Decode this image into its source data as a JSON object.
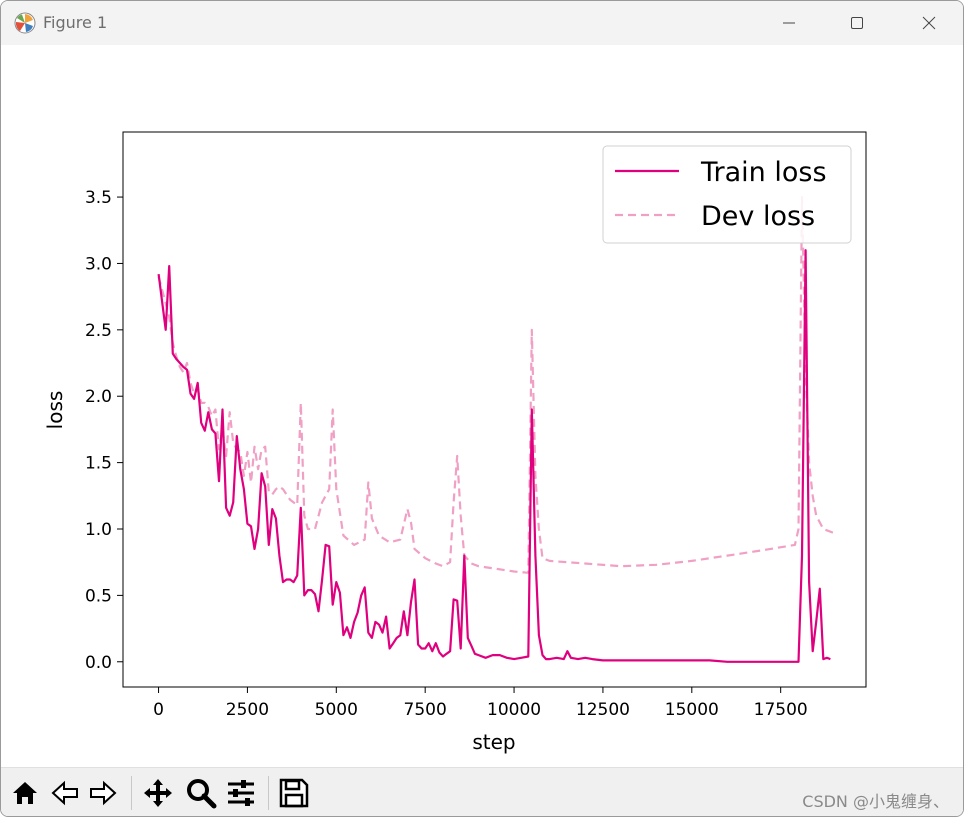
{
  "window": {
    "title": "Figure 1",
    "icon": "matplotlib-icon"
  },
  "toolbar": {
    "buttons": [
      "home-icon",
      "back-icon",
      "forward-icon",
      "pan-icon",
      "zoom-icon",
      "configure-subplots-icon",
      "save-icon"
    ],
    "watermark": "CSDN @小鬼缠身、"
  },
  "colors": {
    "train": "#e0007f",
    "dev": "#f0a0c4"
  },
  "chart_data": {
    "type": "line",
    "xlabel": "step",
    "ylabel": "loss",
    "xlim": [
      -1000,
      19900
    ],
    "ylim": [
      -0.19,
      3.99
    ],
    "xticks": [
      0,
      2500,
      5000,
      7500,
      10000,
      12500,
      15000,
      17500
    ],
    "yticks": [
      0.0,
      0.5,
      1.0,
      1.5,
      2.0,
      2.5,
      3.0,
      3.5
    ],
    "legend": {
      "position": "top-right",
      "entries": [
        "Train loss",
        "Dev loss"
      ]
    },
    "grid": false,
    "series": [
      {
        "name": "Train loss",
        "style": "solid",
        "x": [
          0,
          200,
          300,
          400,
          500,
          600,
          700,
          800,
          900,
          1000,
          1100,
          1200,
          1300,
          1400,
          1500,
          1600,
          1700,
          1800,
          1900,
          2000,
          2100,
          2200,
          2300,
          2400,
          2500,
          2600,
          2700,
          2800,
          2900,
          3000,
          3100,
          3200,
          3300,
          3400,
          3500,
          3600,
          3700,
          3800,
          3900,
          4000,
          4100,
          4200,
          4300,
          4400,
          4500,
          4600,
          4700,
          4800,
          4900,
          5000,
          5100,
          5200,
          5300,
          5400,
          5500,
          5600,
          5700,
          5800,
          5900,
          6000,
          6100,
          6200,
          6300,
          6400,
          6500,
          6600,
          6700,
          6800,
          6900,
          7000,
          7100,
          7200,
          7300,
          7400,
          7500,
          7600,
          7700,
          7800,
          7900,
          8000,
          8100,
          8200,
          8300,
          8400,
          8500,
          8600,
          8700,
          8800,
          8900,
          9000,
          9200,
          9400,
          9600,
          9800,
          10000,
          10200,
          10400,
          10500,
          10600,
          10700,
          10800,
          10900,
          11000,
          11200,
          11400,
          11500,
          11600,
          11800,
          12000,
          12200,
          12500,
          13000,
          13500,
          14000,
          14500,
          15000,
          15500,
          16000,
          16500,
          17000,
          17500,
          18000,
          18100,
          18200,
          18300,
          18400,
          18500,
          18600,
          18700,
          18800,
          18900
        ],
        "values": [
          2.92,
          2.5,
          2.98,
          2.32,
          2.28,
          2.25,
          2.22,
          2.2,
          2.02,
          1.98,
          2.1,
          1.8,
          1.74,
          1.88,
          1.75,
          1.72,
          1.36,
          1.9,
          1.16,
          1.1,
          1.2,
          1.7,
          1.45,
          1.3,
          1.04,
          1.02,
          0.85,
          1.0,
          1.42,
          1.32,
          0.88,
          1.15,
          1.08,
          0.8,
          0.6,
          0.62,
          0.62,
          0.6,
          0.65,
          1.16,
          0.5,
          0.54,
          0.54,
          0.51,
          0.38,
          0.62,
          0.88,
          0.87,
          0.43,
          0.6,
          0.52,
          0.2,
          0.26,
          0.18,
          0.3,
          0.37,
          0.5,
          0.56,
          0.22,
          0.18,
          0.3,
          0.28,
          0.22,
          0.34,
          0.1,
          0.14,
          0.18,
          0.2,
          0.38,
          0.2,
          0.45,
          0.62,
          0.13,
          0.1,
          0.1,
          0.14,
          0.08,
          0.14,
          0.07,
          0.04,
          0.06,
          0.08,
          0.47,
          0.46,
          0.1,
          0.8,
          0.18,
          0.12,
          0.06,
          0.05,
          0.03,
          0.05,
          0.05,
          0.03,
          0.02,
          0.03,
          0.04,
          1.9,
          0.8,
          0.2,
          0.05,
          0.02,
          0.02,
          0.03,
          0.02,
          0.08,
          0.03,
          0.02,
          0.03,
          0.02,
          0.01,
          0.01,
          0.01,
          0.01,
          0.01,
          0.01,
          0.01,
          0.0,
          0.0,
          0.0,
          0.0,
          0.0,
          0.8,
          3.1,
          0.6,
          0.08,
          0.3,
          0.55,
          0.02,
          0.03,
          0.02
        ]
      },
      {
        "name": "Dev loss",
        "style": "dashed",
        "x": [
          0,
          200,
          300,
          400,
          500,
          600,
          700,
          800,
          900,
          1000,
          1100,
          1200,
          1300,
          1400,
          1500,
          1600,
          1700,
          1800,
          1900,
          2000,
          2100,
          2200,
          2300,
          2400,
          2500,
          2600,
          2700,
          2800,
          2900,
          3000,
          3100,
          3200,
          3300,
          3400,
          3500,
          3600,
          3700,
          3800,
          3900,
          4000,
          4100,
          4200,
          4400,
          4600,
          4800,
          4900,
          5000,
          5200,
          5500,
          5800,
          5900,
          6000,
          6200,
          6500,
          6800,
          7000,
          7100,
          7200,
          7500,
          7800,
          8000,
          8200,
          8300,
          8400,
          8500,
          8600,
          8800,
          9000,
          9500,
          10000,
          10400,
          10500,
          10600,
          10700,
          10800,
          11000,
          12000,
          13000,
          14000,
          15000,
          16000,
          17000,
          17900,
          18000,
          18100,
          18200,
          18300,
          18400,
          18500,
          18700,
          19000
        ],
        "values": [
          2.9,
          2.7,
          2.6,
          2.4,
          2.3,
          2.22,
          2.18,
          2.25,
          2.1,
          2.02,
          2.05,
          1.95,
          1.95,
          1.92,
          1.85,
          1.9,
          1.6,
          1.75,
          1.55,
          1.88,
          1.65,
          1.6,
          1.58,
          1.4,
          1.58,
          1.35,
          1.62,
          1.45,
          1.6,
          1.62,
          1.28,
          1.26,
          1.3,
          1.32,
          1.3,
          1.26,
          1.22,
          1.2,
          1.18,
          1.95,
          1.1,
          1.0,
          1.0,
          1.2,
          1.3,
          1.9,
          1.3,
          0.95,
          0.88,
          0.92,
          1.35,
          1.08,
          0.95,
          0.9,
          0.92,
          1.15,
          1.05,
          0.85,
          0.78,
          0.74,
          0.72,
          0.75,
          1.2,
          1.55,
          1.1,
          0.8,
          0.74,
          0.72,
          0.7,
          0.68,
          0.67,
          2.5,
          1.4,
          1.0,
          0.78,
          0.76,
          0.74,
          0.72,
          0.73,
          0.76,
          0.8,
          0.84,
          0.88,
          1.0,
          3.5,
          2.2,
          1.5,
          1.25,
          1.1,
          1.0,
          0.97
        ]
      }
    ]
  }
}
